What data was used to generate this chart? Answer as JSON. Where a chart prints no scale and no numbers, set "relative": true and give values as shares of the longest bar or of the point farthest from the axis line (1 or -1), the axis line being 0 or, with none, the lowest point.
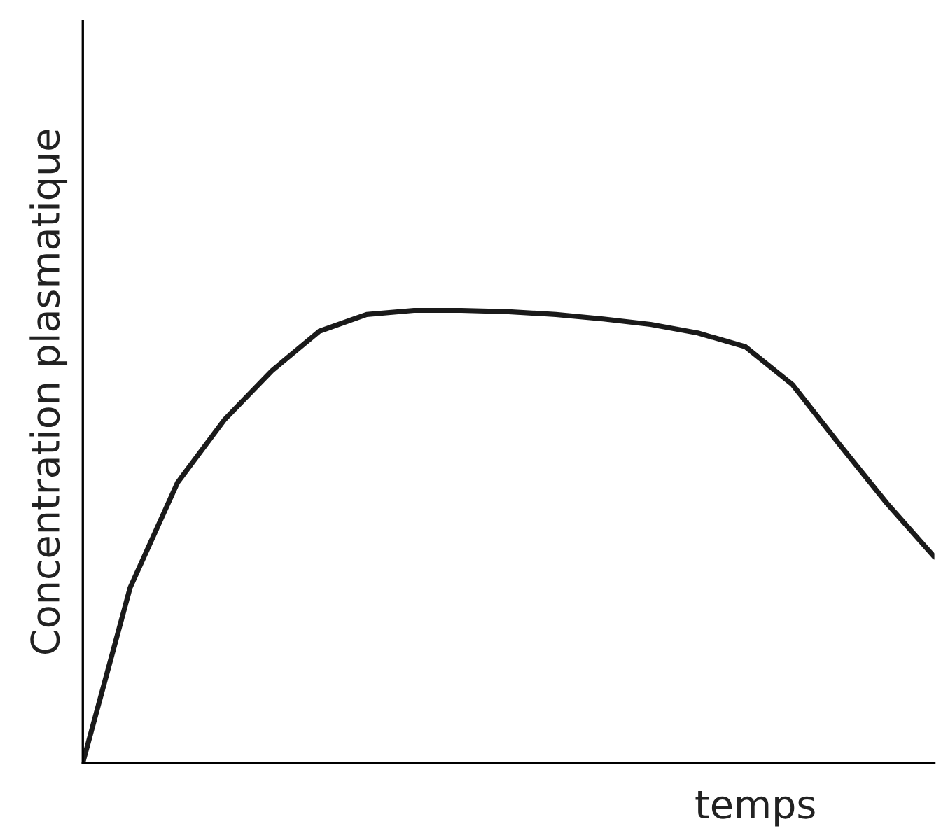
{
  "chart_data": {
    "type": "line",
    "relative": true,
    "xlabel": "temps",
    "ylabel": "Concentration plasmatique",
    "categories": [
      null,
      null,
      null,
      null,
      null,
      null,
      null,
      null,
      null,
      null,
      null,
      null,
      null,
      null,
      null,
      null,
      null,
      null,
      null
    ],
    "series": [
      {
        "color": "#1a1a1a",
        "values": [
          0,
          0.387,
          0.619,
          0.759,
          0.867,
          0.954,
          0.991,
          1,
          1,
          0.997,
          0.991,
          0.981,
          0.969,
          0.95,
          0.92,
          0.836,
          0.703,
          0.573,
          0.455
        ]
      }
    ],
    "tick_labels": false,
    "legend": false,
    "marker": "none",
    "line_style": "solid"
  }
}
